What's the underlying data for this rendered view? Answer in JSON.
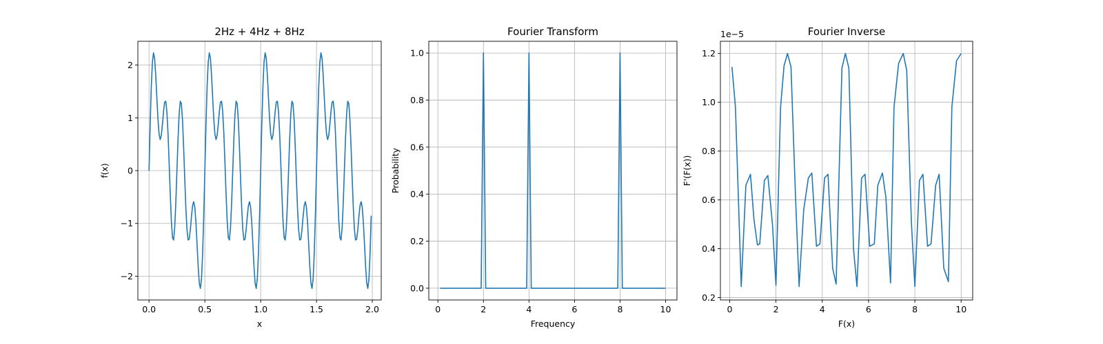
{
  "chart_data": [
    {
      "type": "line",
      "title": "2Hz + 4Hz + 8Hz",
      "xlabel": "x",
      "ylabel": "f(x)",
      "xlim": [
        -0.1,
        2.08
      ],
      "ylim": [
        -2.45,
        2.45
      ],
      "xticks": [
        0.0,
        0.5,
        1.0,
        1.5,
        2.0
      ],
      "xtick_labels": [
        "0.0",
        "0.5",
        "1.0",
        "1.5",
        "2.0"
      ],
      "yticks": [
        -2,
        -1,
        0,
        1,
        2
      ],
      "ytick_labels": [
        "−2",
        "−1",
        "0",
        "1",
        "2"
      ],
      "grid": true,
      "color": "#1f77b4",
      "series": [
        {
          "function": "sin(2π·2x) + sin(2π·4x) + sin(2π·8x)",
          "x_start": 0.0,
          "x_end": 1.99,
          "x_step": 0.01
        }
      ]
    },
    {
      "type": "line",
      "title": "Fourier Transform",
      "xlabel": "Frequency",
      "ylabel": "Probability",
      "xlim": [
        -0.4,
        10.5
      ],
      "ylim": [
        -0.05,
        1.05
      ],
      "xticks": [
        0,
        2,
        4,
        6,
        8,
        10
      ],
      "xtick_labels": [
        "0",
        "2",
        "4",
        "6",
        "8",
        "10"
      ],
      "yticks": [
        0.0,
        0.2,
        0.4,
        0.6,
        0.8,
        1.0
      ],
      "ytick_labels": [
        "0.0",
        "0.2",
        "0.4",
        "0.6",
        "0.8",
        "1.0"
      ],
      "grid": true,
      "color": "#1f77b4",
      "series": [
        {
          "x": [
            0.1,
            1.9,
            2.0,
            2.1,
            3.9,
            4.0,
            4.1,
            7.9,
            8.0,
            8.1,
            10.0
          ],
          "y": [
            0,
            0,
            1,
            0,
            0,
            1,
            0,
            0,
            1,
            0,
            0
          ]
        }
      ]
    },
    {
      "type": "line",
      "title": "Fourier Inverse",
      "xlabel": "F(x)",
      "ylabel": "F'(F(x))",
      "offset_label": "1e−5",
      "xlim": [
        -0.4,
        10.5
      ],
      "ylim": [
        0.19,
        1.25
      ],
      "xticks": [
        0,
        2,
        4,
        6,
        8,
        10
      ],
      "xtick_labels": [
        "0",
        "2",
        "4",
        "6",
        "8",
        "10"
      ],
      "yticks": [
        0.2,
        0.4,
        0.6,
        0.8,
        1.0,
        1.2
      ],
      "ytick_labels": [
        "0.2",
        "0.4",
        "0.6",
        "0.8",
        "1.0",
        "1.2"
      ],
      "grid": true,
      "color": "#1f77b4",
      "series": [
        {
          "x": [
            0.1,
            0.25,
            0.5,
            0.7,
            0.9,
            1.05,
            1.2,
            1.3,
            1.5,
            1.65,
            1.85,
            2.0,
            2.2,
            2.35,
            2.5,
            2.65,
            2.85,
            3.0,
            3.2,
            3.4,
            3.55,
            3.75,
            3.9,
            4.1,
            4.25,
            4.45,
            4.6,
            4.85,
            5.0,
            5.15,
            5.35,
            5.5,
            5.7,
            5.85,
            6.05,
            6.25,
            6.4,
            6.6,
            6.75,
            6.95,
            7.1,
            7.3,
            7.5,
            7.65,
            7.85,
            8.0,
            8.2,
            8.35,
            8.55,
            8.7,
            8.9,
            9.05,
            9.25,
            9.45,
            9.6,
            9.8,
            10.0
          ],
          "y": [
            1.145,
            0.98,
            0.245,
            0.66,
            0.705,
            0.52,
            0.415,
            0.42,
            0.68,
            0.7,
            0.5,
            0.25,
            0.98,
            1.15,
            1.2,
            1.145,
            0.6,
            0.245,
            0.56,
            0.69,
            0.71,
            0.41,
            0.42,
            0.69,
            0.705,
            0.32,
            0.255,
            1.14,
            1.2,
            1.14,
            0.4,
            0.245,
            0.69,
            0.705,
            0.41,
            0.42,
            0.66,
            0.71,
            0.61,
            0.26,
            0.98,
            1.16,
            1.2,
            1.13,
            0.51,
            0.245,
            0.68,
            0.705,
            0.41,
            0.42,
            0.66,
            0.705,
            0.32,
            0.265,
            0.98,
            1.17,
            1.2
          ]
        }
      ]
    }
  ]
}
